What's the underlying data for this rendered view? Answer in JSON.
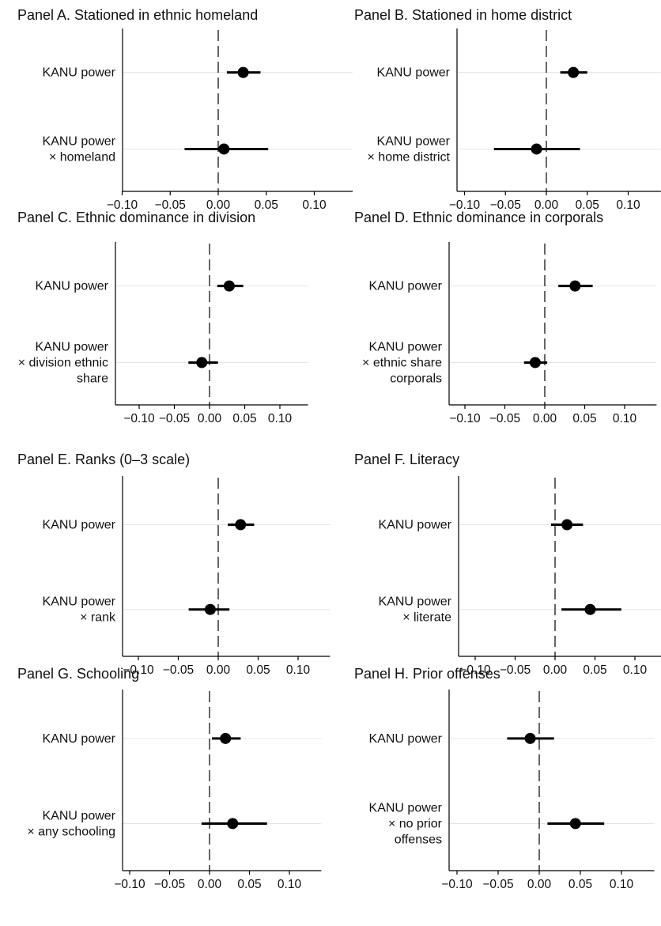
{
  "chart_data": [
    {
      "type": "coefficient-plot",
      "title": "Panel A. Stationed in ethnic homeland",
      "rows": [
        {
          "label": [
            "KANU power"
          ],
          "estimate": 0.026,
          "ci": [
            0.009,
            0.044
          ]
        },
        {
          "label": [
            "KANU power",
            "× homeland"
          ],
          "estimate": 0.006,
          "ci": [
            -0.035,
            0.052
          ]
        }
      ],
      "xlim": [
        -0.13,
        0.14
      ],
      "xticks": [
        "−0.10",
        "−0.05",
        "0.00",
        "0.05",
        "0.10"
      ],
      "reference_line": 0,
      "grid": "horizontal"
    },
    {
      "type": "coefficient-plot",
      "title": "Panel B. Stationed in home district",
      "rows": [
        {
          "label": [
            "KANU power"
          ],
          "estimate": 0.033,
          "ci": [
            0.017,
            0.05
          ]
        },
        {
          "label": [
            "KANU power",
            "× home district"
          ],
          "estimate": -0.012,
          "ci": [
            -0.064,
            0.041
          ]
        }
      ],
      "xlim": [
        -0.13,
        0.14
      ],
      "xticks": [
        "−0.10",
        "−0.05",
        "0.00",
        "0.05",
        "0.10"
      ],
      "reference_line": 0,
      "grid": "horizontal"
    },
    {
      "type": "coefficient-plot",
      "title": "Panel C. Ethnic dominance in division",
      "rows": [
        {
          "label": [
            "KANU power"
          ],
          "estimate": 0.028,
          "ci": [
            0.011,
            0.048
          ]
        },
        {
          "label": [
            "KANU power",
            "× division ethnic",
            "share"
          ],
          "estimate": -0.011,
          "ci": [
            -0.03,
            0.012
          ]
        }
      ],
      "xlim": [
        -0.13,
        0.14
      ],
      "xticks": [
        "−0.10",
        "−0.05",
        "0.00",
        "0.05",
        "0.10"
      ],
      "reference_line": 0,
      "grid": "horizontal"
    },
    {
      "type": "coefficient-plot",
      "title": "Panel D. Ethnic dominance in corporals",
      "rows": [
        {
          "label": [
            "KANU power"
          ],
          "estimate": 0.038,
          "ci": [
            0.017,
            0.06
          ]
        },
        {
          "label": [
            "KANU power",
            "× ethnic share",
            "corporals"
          ],
          "estimate": -0.012,
          "ci": [
            -0.026,
            0.003
          ]
        }
      ],
      "xlim": [
        -0.13,
        0.14
      ],
      "xticks": [
        "−0.10",
        "−0.05",
        "0.00",
        "0.05",
        "0.10"
      ],
      "reference_line": 0,
      "grid": "horizontal"
    },
    {
      "type": "coefficient-plot",
      "title": "Panel E. Ranks (0–3 scale)",
      "rows": [
        {
          "label": [
            "KANU power"
          ],
          "estimate": 0.028,
          "ci": [
            0.012,
            0.045
          ]
        },
        {
          "label": [
            "KANU power",
            "× rank"
          ],
          "estimate": -0.01,
          "ci": [
            -0.037,
            0.014
          ]
        }
      ],
      "xlim": [
        -0.13,
        0.14
      ],
      "xticks": [
        "−0.10",
        "−0.05",
        "0.00",
        "0.05",
        "0.10"
      ],
      "reference_line": 0,
      "grid": "horizontal"
    },
    {
      "type": "coefficient-plot",
      "title": "Panel F. Literacy",
      "rows": [
        {
          "label": [
            "KANU power"
          ],
          "estimate": 0.015,
          "ci": [
            -0.005,
            0.035
          ]
        },
        {
          "label": [
            "KANU power",
            "× literate"
          ],
          "estimate": 0.044,
          "ci": [
            0.008,
            0.083
          ]
        }
      ],
      "xlim": [
        -0.13,
        0.14
      ],
      "xticks": [
        "−0.10",
        "−0.05",
        "0.00",
        "0.05",
        "0.10"
      ],
      "reference_line": 0,
      "grid": "horizontal"
    },
    {
      "type": "coefficient-plot",
      "title": "Panel G. Schooling",
      "rows": [
        {
          "label": [
            "KANU power"
          ],
          "estimate": 0.02,
          "ci": [
            0.003,
            0.039
          ]
        },
        {
          "label": [
            "KANU power",
            "× any schooling"
          ],
          "estimate": 0.029,
          "ci": [
            -0.01,
            0.072
          ]
        }
      ],
      "xlim": [
        -0.13,
        0.14
      ],
      "xticks": [
        "−0.10",
        "−0.05",
        "0.00",
        "0.05",
        "0.10"
      ],
      "reference_line": 0,
      "grid": "horizontal"
    },
    {
      "type": "coefficient-plot",
      "title": "Panel H. Prior offenses",
      "rows": [
        {
          "label": [
            "KANU power"
          ],
          "estimate": -0.011,
          "ci": [
            -0.039,
            0.018
          ]
        },
        {
          "label": [
            "KANU power",
            "× no prior",
            "offenses"
          ],
          "estimate": 0.044,
          "ci": [
            0.01,
            0.079
          ]
        }
      ],
      "xlim": [
        -0.13,
        0.14
      ],
      "xticks": [
        "−0.10",
        "−0.05",
        "0.00",
        "0.05",
        "0.10"
      ],
      "reference_line": 0,
      "grid": "horizontal"
    }
  ],
  "style": {
    "marker_color": "#000000",
    "ci_color": "#000000",
    "grid_color": "#e5e5e5",
    "axis_color": "#000000"
  }
}
